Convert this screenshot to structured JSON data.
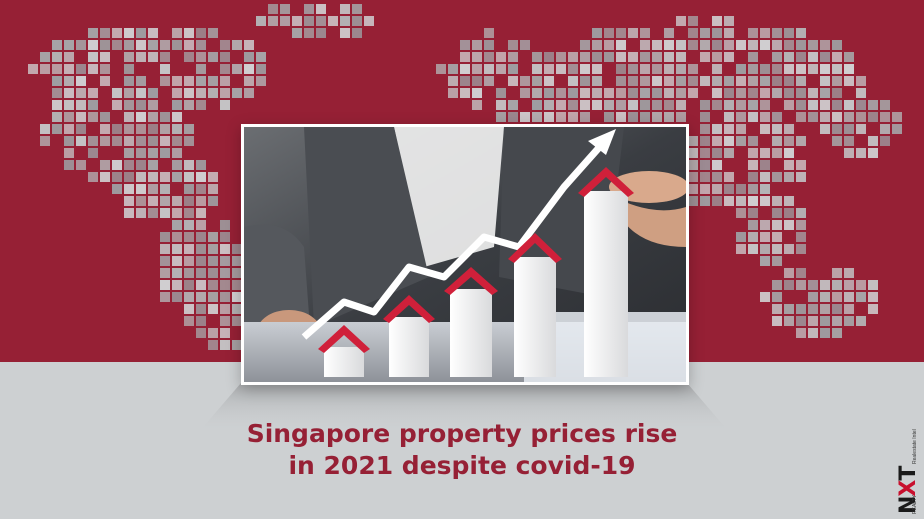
{
  "headline": {
    "line1": "Singapore property prices rise",
    "line2": "in 2021 despite covid-19"
  },
  "logo": {
    "prefix": "REALTY",
    "main_n": "N",
    "main_x": "X",
    "main_t": "T",
    "tagline": "Realestate Intel"
  },
  "colors": {
    "brand_maroon": "#962035",
    "background_grey": "#cdd0d2",
    "map_tiles": "#b4b4b6",
    "roof_red": "#d0203a"
  },
  "icons": {
    "map": "world-map-pixel-grid",
    "photo": "rising-house-bars-photo"
  }
}
